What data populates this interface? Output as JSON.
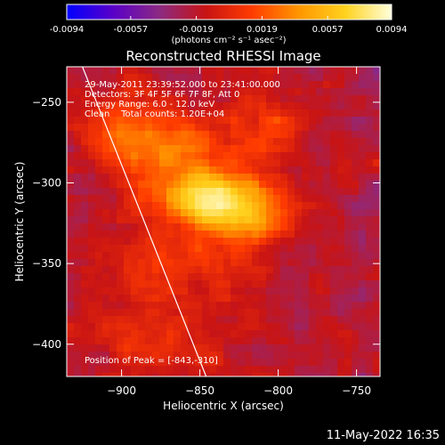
{
  "chart_data": {
    "type": "heatmap",
    "title": "Reconstructed RHESSI Image",
    "xlabel": "Heliocentric X (arcsec)",
    "ylabel": "Heliocentric Y (arcsec)",
    "xlim": [
      -935,
      -735
    ],
    "ylim": [
      -420,
      -228
    ],
    "x_ticks": [
      -900,
      -850,
      -800,
      -750
    ],
    "y_ticks": [
      -250,
      -300,
      -350,
      -400
    ],
    "colorbar": {
      "range": [
        -0.0094,
        0.0094
      ],
      "ticks": [
        "-0.0094",
        "-0.0057",
        "-0.0019",
        "0.0019",
        "0.0057",
        "0.0094"
      ],
      "tick_values": [
        -0.0094,
        -0.0057,
        -0.0019,
        0.0019,
        0.0057,
        0.0094
      ],
      "label": "(photons cm⁻² s⁻¹ asec⁻²)",
      "colormap": [
        "#0000ff",
        "#5a00c8",
        "#8c2a82",
        "#c81414",
        "#ff3c00",
        "#ff9600",
        "#ffd21e",
        "#ffffdc"
      ]
    },
    "info_lines": [
      "29-May-2011 23:39:52.000 to 23:41:00.000",
      "Detectors: 3F 4F 5F 6F 7F 8F, Att 0",
      "Energy Range: 6.0 - 12.0 keV",
      "Clean    Total counts: 1.20E+04"
    ],
    "peak_label": "Position of Peak = [-843,-310]",
    "peak": [
      -843,
      -310
    ],
    "limb_line": [
      [
        -925,
        -228
      ],
      [
        -846,
        -420
      ]
    ],
    "sources": [
      {
        "x": -843,
        "y": -310,
        "sx": 22,
        "sy": 11,
        "amp": 0.0094
      },
      {
        "x": -815,
        "y": -322,
        "sx": 18,
        "sy": 12,
        "amp": 0.0052
      },
      {
        "x": -862,
        "y": -282,
        "sx": 28,
        "sy": 18,
        "amp": 0.0042
      },
      {
        "x": -900,
        "y": -268,
        "sx": 18,
        "sy": 18,
        "amp": 0.0032
      },
      {
        "x": -860,
        "y": -348,
        "sx": 30,
        "sy": 18,
        "amp": 0.0026
      },
      {
        "x": -805,
        "y": -268,
        "sx": 20,
        "sy": 15,
        "amp": 0.0028
      },
      {
        "x": -875,
        "y": -395,
        "sx": 30,
        "sy": 24,
        "amp": 0.0022
      }
    ],
    "colorbar_ticks_visible": true
  },
  "footer": {
    "timestamp": "11-May-2022 16:35"
  }
}
